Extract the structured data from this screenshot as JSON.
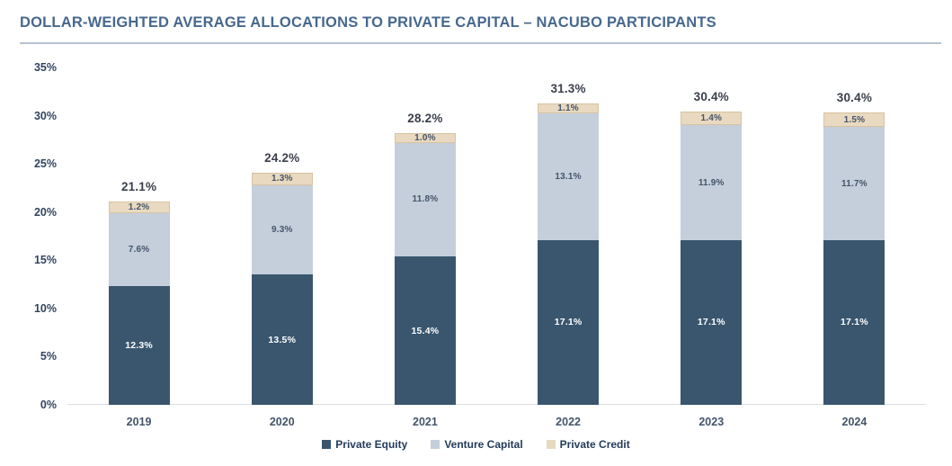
{
  "header": {
    "title": "DOLLAR-WEIGHTED AVERAGE ALLOCATIONS TO PRIVATE CAPITAL – NACUBO PARTICIPANTS"
  },
  "chart_data": {
    "type": "bar",
    "stacked": true,
    "title": "DOLLAR-WEIGHTED AVERAGE ALLOCATIONS TO PRIVATE CAPITAL – NACUBO PARTICIPANTS",
    "categories": [
      "2019",
      "2020",
      "2021",
      "2022",
      "2023",
      "2024"
    ],
    "series": [
      {
        "name": "Private Equity",
        "color": "#3A566E",
        "label_color": "#FFFFFF",
        "label_bold": true,
        "values": [
          12.3,
          13.5,
          15.4,
          17.1,
          17.1,
          17.1
        ]
      },
      {
        "name": "Venture Capital",
        "color": "#C4CFDB",
        "label_color": "#44546A",
        "label_bold": false,
        "values": [
          7.6,
          9.3,
          11.8,
          13.1,
          11.9,
          11.7
        ]
      },
      {
        "name": "Private Credit",
        "color": "#E8D9C0",
        "label_color": "#44546A",
        "label_bold": false,
        "values": [
          1.2,
          1.3,
          1.0,
          1.1,
          1.4,
          1.5
        ]
      }
    ],
    "totals": [
      "21.1%",
      "24.2%",
      "28.2%",
      "31.3%",
      "30.4%",
      "30.4%"
    ],
    "y_ticks": [
      "0%",
      "5%",
      "10%",
      "15%",
      "20%",
      "25%",
      "30%",
      "35%"
    ],
    "ylim": [
      0,
      35
    ],
    "xlabel": "",
    "ylabel": "",
    "grid": false,
    "legend_position": "bottom",
    "accent_colors": {
      "title": "#47688E",
      "title_underline": "#B7C3D1",
      "axis_labels": "#32455F",
      "baseline": "#D9DDE3"
    }
  }
}
